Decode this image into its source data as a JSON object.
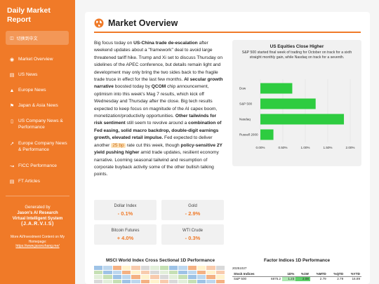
{
  "app": {
    "title": "Daily Market Report",
    "lang_button": "切换到中文"
  },
  "sidebar": {
    "items": [
      {
        "label": "Market Overview",
        "icon": "globe-icon"
      },
      {
        "label": "US News",
        "icon": "news-icon"
      },
      {
        "label": "Europe News",
        "icon": "bank-icon"
      },
      {
        "label": "Japan & Asia News",
        "icon": "flag-icon"
      },
      {
        "label": "US Company News & Performance",
        "icon": "document-icon"
      },
      {
        "label": "Europe Company News & Performance",
        "icon": "chart-up-icon"
      },
      {
        "label": "FICC Performance",
        "icon": "line-chart-icon"
      },
      {
        "label": "FT Articles",
        "icon": "article-icon"
      }
    ],
    "generated_by": "Generated by",
    "author": "Jason's AI Research",
    "system": "Virtual Intelligent System",
    "jarvis": "(J.A.R.V.I.S)",
    "more_text": "More AI/Investment Content on My Homepage:",
    "more_link": "https://www.jasonzhang.me/"
  },
  "main": {
    "title": "Market Overview",
    "article": {
      "p1": "Big focus today on ",
      "b1": "US-China trade de-escalation",
      "p2": " after weekend updates about a \"framework\" deal to avoid large threatened tariff hike. Trump and Xi set to discuss Thursday on sidelines of the APEC conference, but details remain light and development may only bring the two sides back to the fragile trade truce in effect for the last few months. ",
      "b2": "AI secular growth narrative",
      "p3": " boosted today by ",
      "b3": "QCOM",
      "p4": " chip announcement, optimism into this week's Mag 7 results, which kick off Wednesday and Thursday after the close. Big tech results expected to keep focus on magnitude of the AI capex boom, monetization/productivity opportunities. ",
      "b4": "Other tailwinds for risk sentiment",
      "p5": " still seem to revolve around a ",
      "b5": "combination of Fed easing, solid macro backdrop, double-digit earnings growth, elevated retail impulse.",
      "p6": " Fed expected to deliver another ",
      "hl": "25 bp",
      "p7": " rate cut this week, though ",
      "b6": "policy-sensitive 2Y yield pushing higher",
      "p8": " amid trade updates, resilient economy narrative. Looming seasonal tailwind and resumption of corporate buyback activity some of the other bullish talking points."
    },
    "cards": [
      {
        "label": "Dollar Index",
        "value": "- 0.1%"
      },
      {
        "label": "Gold",
        "value": "- 2.9%"
      },
      {
        "label": "Bitcoin Futures",
        "value": "+ 4.0%"
      },
      {
        "label": "WTI Crude",
        "value": "- 0.3%"
      }
    ],
    "chart_panel": {
      "title": "US Equities Close Higher",
      "subtitle": "S&P 500 started final week of trading for October on track for a sixth straight monthly gain, while Nasdaq on track for a seventh."
    },
    "bottom_left_title": "MSCI World Index Cross Sectional 1D Performance",
    "bottom_right_title": "Factor Indices 1D Performance",
    "factor": {
      "date": "20251027",
      "headers": [
        "Stock Indices",
        "",
        "1D%",
        "%1W",
        "%MTD",
        "%QTD",
        "%YTD"
      ],
      "rows": [
        [
          "S&P 500",
          "6875.2",
          "1.23",
          "2.08",
          "2.79",
          "2.79",
          "16.89"
        ]
      ]
    }
  },
  "chart_data": {
    "type": "bar",
    "orientation": "horizontal",
    "title": "US Equities Close Higher",
    "categories": [
      "Dow",
      "S&P 500",
      "Nasdaq",
      "Russell 2000"
    ],
    "values": [
      0.71,
      1.23,
      1.86,
      0.29
    ],
    "xlim": [
      0,
      2
    ],
    "xticks": [
      "0.00%",
      "0.50%",
      "1.00%",
      "1.50%",
      "2.00%"
    ],
    "color": "#2ecc40",
    "grid": true
  },
  "colors": {
    "accent": "#f07a28",
    "bar": "#2ecc40"
  }
}
